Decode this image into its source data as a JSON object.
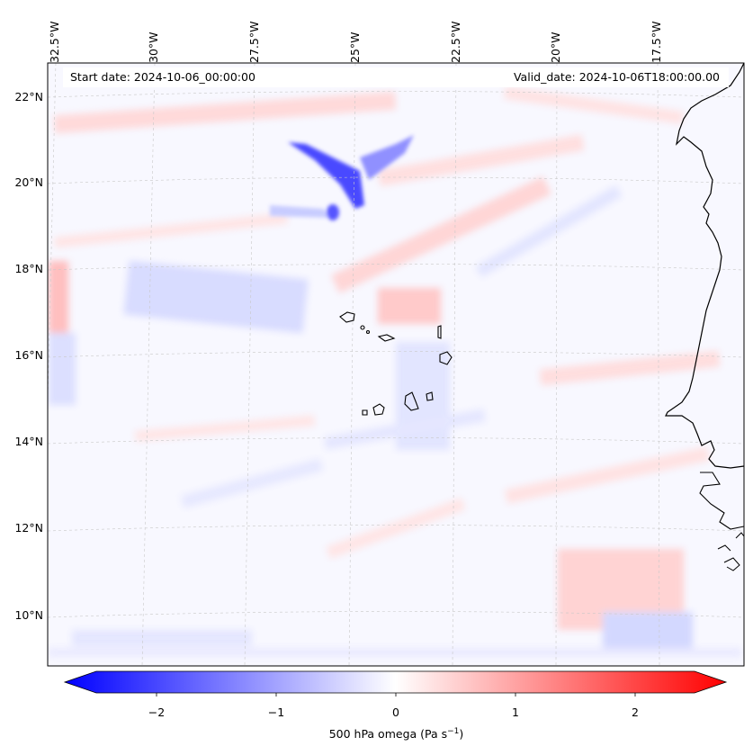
{
  "header": {
    "start_date": "Start date: 2024-10-06_00:00:00",
    "valid_date": "Valid_date: 2024-10-06T18:00:00.00"
  },
  "map": {
    "longitude_labels": [
      "32.5°W",
      "30°W",
      "27.5°W",
      "25°W",
      "22.5°W",
      "20°W",
      "17.5°W"
    ],
    "latitude_labels": [
      "22°N",
      "20°N",
      "18°N",
      "16°N",
      "14°N",
      "12°N",
      "10°N"
    ],
    "extent": {
      "lon_min": -33.0,
      "lon_max": -15.5,
      "lat_min": 8.9,
      "lat_max": 22.8
    },
    "gridlines": true,
    "features": [
      "Cape Verde islands",
      "West African coastline"
    ]
  },
  "colorbar": {
    "label": "500 hPa omega (Pa s",
    "label_sup": "−1",
    "label_close": ")",
    "ticks": [
      "−2",
      "−1",
      "0",
      "1",
      "2"
    ],
    "range": [
      -2.6,
      2.6
    ],
    "extend": "both",
    "colormap": "bwr",
    "colors": {
      "min": "#0000ff",
      "mid": "#ffffff",
      "max": "#ff0000"
    }
  }
}
